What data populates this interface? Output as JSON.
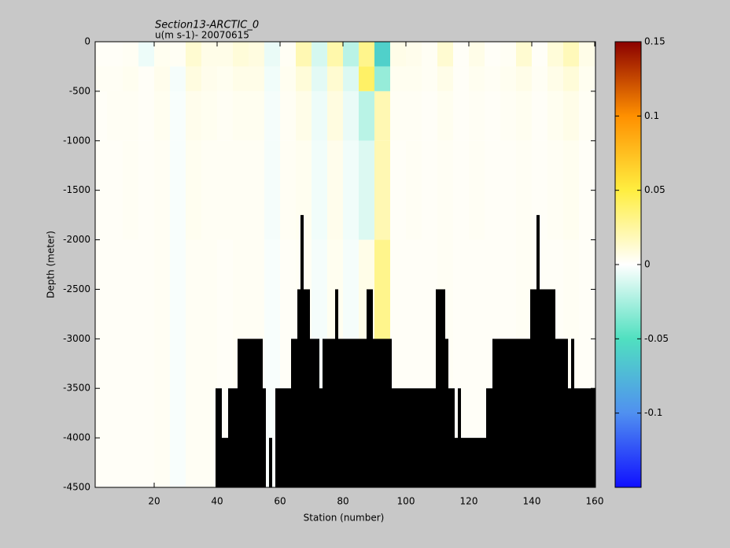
{
  "chart_data": {
    "type": "section",
    "title": "Section13-ARCTIC_0",
    "subtitle": "u(m s-1)- 20070615",
    "x_label": "Station (number)",
    "y_label": "Depth (meter)",
    "xlim": [
      1.25,
      160.25
    ],
    "xticks": [
      20,
      40,
      60,
      80,
      100,
      120,
      140,
      160
    ],
    "ylim": [
      -4500,
      0
    ],
    "yticks": [
      0,
      -500,
      -1000,
      -1500,
      -2000,
      -2500,
      -3000,
      -3500,
      -4000,
      -4500
    ],
    "clim": [
      -0.15,
      0.15
    ],
    "cticks": [
      -0.1,
      -0.05,
      0,
      0.05,
      0.1,
      0.15
    ],
    "colormap": [
      "#1010ff",
      "#5090f0",
      "#50e0c0",
      "#ffffff",
      "#ffee40",
      "#ff9000",
      "#8b0000"
    ],
    "field": {
      "x_edges": [
        0,
        5,
        10,
        15,
        20,
        25,
        30,
        35,
        40,
        45,
        50,
        55,
        60,
        65,
        70,
        75,
        80,
        85,
        90,
        95,
        100,
        105,
        110,
        115,
        120,
        125,
        130,
        135,
        140,
        145,
        150,
        155,
        160
      ],
      "z_edges": [
        0,
        -250,
        -500,
        -1000,
        -2000,
        -4500
      ],
      "values": [
        [
          0.002,
          0.002,
          0.003,
          -0.005,
          0.004,
          0.003,
          0.012,
          0.006,
          0.006,
          0.01,
          0.008,
          -0.006,
          0.003,
          0.02,
          -0.012,
          0.022,
          -0.02,
          0.03,
          -0.06,
          0.006,
          0.005,
          0.003,
          0.012,
          0.002,
          0.006,
          0.002,
          0.003,
          0.012,
          0.002,
          0.01,
          0.018,
          0.006
        ],
        [
          0.003,
          0.003,
          0.004,
          0.002,
          0.005,
          -0.003,
          0.008,
          0.005,
          0.004,
          0.006,
          0.006,
          -0.004,
          0.004,
          0.01,
          -0.008,
          0.012,
          -0.01,
          0.04,
          -0.03,
          0.004,
          0.004,
          0.003,
          0.006,
          0.002,
          0.004,
          0.003,
          0.004,
          0.006,
          0.003,
          0.006,
          0.01,
          0.004
        ],
        [
          0.002,
          0.003,
          0.003,
          0.002,
          0.004,
          -0.002,
          0.005,
          0.004,
          0.003,
          0.004,
          0.004,
          -0.003,
          0.003,
          0.006,
          -0.005,
          0.008,
          -0.006,
          -0.02,
          0.02,
          0.003,
          0.003,
          0.002,
          0.004,
          0.002,
          0.003,
          0.002,
          0.003,
          0.004,
          0.002,
          0.004,
          0.006,
          0.003
        ],
        [
          0.002,
          0.002,
          0.003,
          0.002,
          0.003,
          -0.002,
          0.004,
          0.003,
          0.003,
          0.003,
          0.003,
          -0.003,
          0.003,
          0.004,
          -0.004,
          0.005,
          -0.004,
          -0.01,
          0.02,
          0.002,
          0.003,
          0.002,
          0.003,
          0.002,
          0.003,
          0.002,
          0.002,
          0.003,
          0.002,
          0.003,
          0.004,
          0.002
        ],
        [
          0.002,
          0.002,
          0.002,
          0.002,
          0.003,
          -0.002,
          0.003,
          0.003,
          0.002,
          0.003,
          0.003,
          -0.002,
          0.002,
          0.003,
          -0.003,
          0.004,
          -0.003,
          0.006,
          0.03,
          0.002,
          0.002,
          0.002,
          0.003,
          0.002,
          0.002,
          0.002,
          0.002,
          0.003,
          0.002,
          0.002,
          0.003,
          0.002
        ]
      ]
    },
    "bathymetry": {
      "color": "#000000",
      "x": [
        40,
        42,
        44,
        47,
        55,
        56,
        57,
        58,
        59,
        64,
        66,
        67,
        68,
        70,
        73,
        74,
        78,
        79,
        88,
        90,
        96,
        110,
        113,
        114,
        116,
        117,
        118,
        126,
        128,
        140,
        142,
        143,
        148,
        152,
        153,
        154
      ],
      "depth": [
        -3500,
        -4000,
        -3500,
        -3000,
        -3500,
        null,
        -4000,
        null,
        -3500,
        -3000,
        -2500,
        -1750,
        -2500,
        -3000,
        -3500,
        -3000,
        -2500,
        -3000,
        -2500,
        -3000,
        -3500,
        -2500,
        -3000,
        -3500,
        -4000,
        -3500,
        -4000,
        -3500,
        -3000,
        -2500,
        -1750,
        -2500,
        -3000,
        -3500,
        -3000,
        -3500
      ]
    }
  }
}
